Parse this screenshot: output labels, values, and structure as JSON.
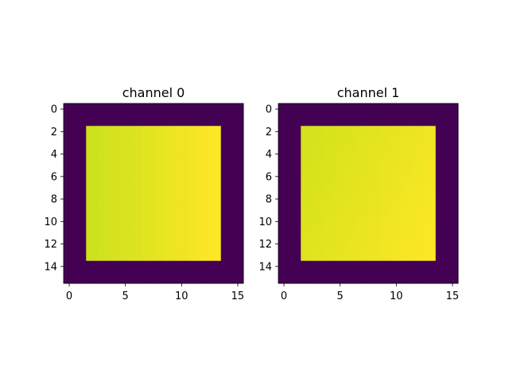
{
  "chart_data": [
    {
      "type": "heatmap",
      "title": "channel 0",
      "xlabel": "",
      "ylabel": "",
      "xticks": [
        0,
        5,
        10,
        15
      ],
      "yticks": [
        0,
        2,
        4,
        6,
        8,
        10,
        12,
        14
      ],
      "xlim": [
        -0.5,
        15.5
      ],
      "ylim": [
        15.5,
        -0.5
      ],
      "grid": false,
      "shape": [
        16,
        16
      ],
      "colormap": "viridis",
      "background_value": 0,
      "background_color": "#440154",
      "inner_square": {
        "rows": [
          2,
          13
        ],
        "cols": [
          2,
          13
        ]
      },
      "inner_color_range": [
        "#cde11d",
        "#fde725"
      ],
      "inner_gradient_direction": "increasing with column (left to right)"
    },
    {
      "type": "heatmap",
      "title": "channel 1",
      "xlabel": "",
      "ylabel": "",
      "xticks": [
        0,
        5,
        10,
        15
      ],
      "yticks": [
        0,
        2,
        4,
        6,
        8,
        10,
        12,
        14
      ],
      "xlim": [
        -0.5,
        15.5
      ],
      "ylim": [
        15.5,
        -0.5
      ],
      "grid": false,
      "shape": [
        16,
        16
      ],
      "colormap": "viridis",
      "background_value": 0,
      "background_color": "#440154",
      "inner_square": {
        "rows": [
          2,
          13
        ],
        "cols": [
          2,
          13
        ]
      },
      "inner_color_range": [
        "#d2e21b",
        "#fde725"
      ],
      "inner_gradient_direction": "increasing toward bottom-right"
    }
  ]
}
